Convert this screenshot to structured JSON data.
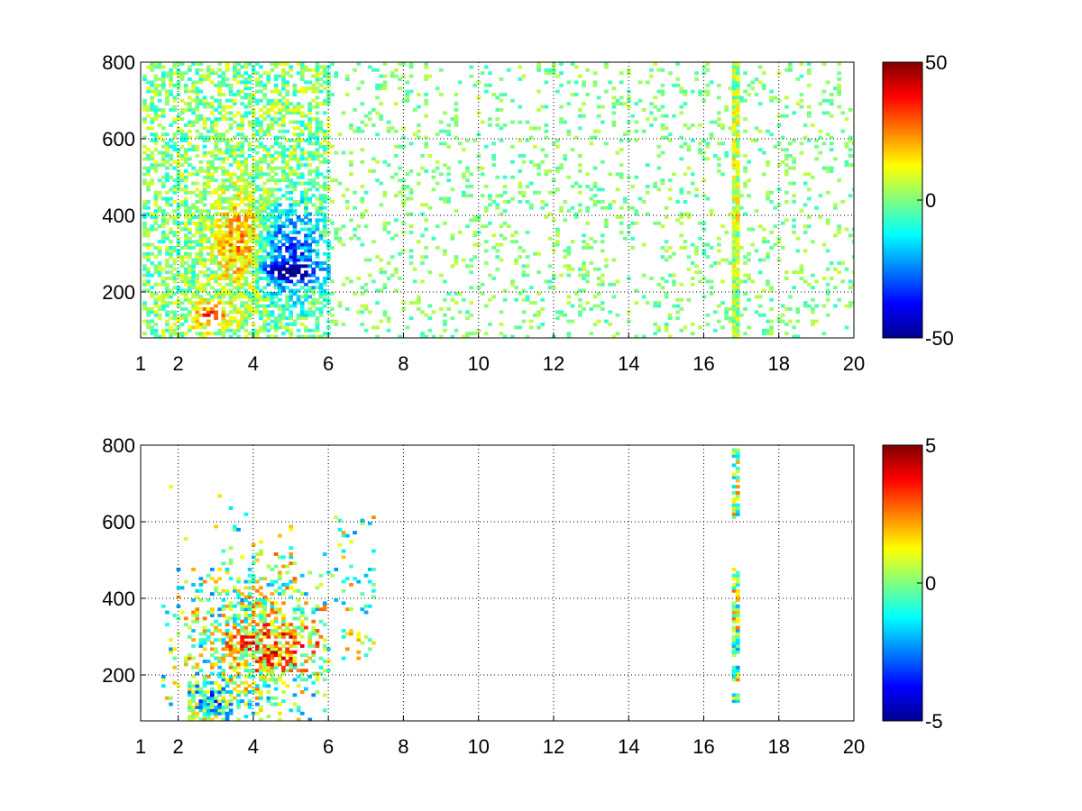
{
  "figure": {
    "background": "#ffffff",
    "colormap": "jet",
    "colormap_stops": [
      "#00008f",
      "#0000ff",
      "#00ffff",
      "#ffff00",
      "#ff0000",
      "#800000"
    ]
  },
  "chart_data": [
    {
      "type": "heatmap",
      "title": "",
      "xlabel": "",
      "ylabel": "",
      "xlim": [
        1,
        20
      ],
      "ylim": [
        80,
        800
      ],
      "x_ticks": [
        1,
        2,
        4,
        6,
        8,
        10,
        12,
        14,
        16,
        18,
        20
      ],
      "y_ticks": [
        200,
        400,
        600,
        800
      ],
      "grid": true,
      "clim": [
        -50,
        50
      ],
      "colorbar_ticks": [
        -50,
        0,
        50
      ],
      "colorbar_tick_labels": [
        "-50",
        "0",
        "50"
      ],
      "description_of_values": "sparse colored cells; dense region x 1.2-6 with positive values (orange/red) around x 2.5-4, y 100-400, negative (blue) around x 4-5.8, y 200-400; scattered near-zero cells beyond x 6; strong vertical streak at x 16.8",
      "features": [
        {
          "x_range": [
            2.3,
            3.3
          ],
          "y_range": [
            100,
            170
          ],
          "value": 30
        },
        {
          "x_range": [
            3.0,
            4.3
          ],
          "y_range": [
            200,
            450
          ],
          "value": 25
        },
        {
          "x_range": [
            4.0,
            5.8
          ],
          "y_range": [
            180,
            420
          ],
          "value": -30
        },
        {
          "x_range": [
            4.2,
            5.8
          ],
          "y_range": [
            230,
            270
          ],
          "value": -40
        },
        {
          "x_range": [
            16.7,
            16.9
          ],
          "y_range": [
            80,
            800
          ],
          "value": 8
        }
      ]
    },
    {
      "type": "heatmap",
      "title": "",
      "xlabel": "",
      "ylabel": "",
      "xlim": [
        1,
        20
      ],
      "ylim": [
        80,
        800
      ],
      "x_ticks": [
        1,
        2,
        4,
        6,
        8,
        10,
        12,
        14,
        16,
        18,
        20
      ],
      "y_ticks": [
        200,
        400,
        600,
        800
      ],
      "grid": true,
      "clim": [
        -5,
        5
      ],
      "colorbar_ticks": [
        -5,
        0,
        5
      ],
      "colorbar_tick_labels": [
        "-5",
        "0",
        "5"
      ],
      "description_of_values": "sparse cells concentrated at x 1.5-6, y 100-700 with mixed values; low region x 2.3-3.3, y 100-170 negative (cyan); region x 3-5.8, y 200-350 positive (orange/red); isolated cells near x 8.2, 14, 15.3 and a column at x 16.8",
      "features": [
        {
          "x_range": [
            2.3,
            3.3
          ],
          "y_range": [
            100,
            170
          ],
          "value": -1.5
        },
        {
          "x_range": [
            3.2,
            5.8
          ],
          "y_range": [
            200,
            340
          ],
          "value": 2.5
        },
        {
          "x_range": [
            4.0,
            5.8
          ],
          "y_range": [
            340,
            600
          ],
          "value": 0.5
        },
        {
          "x_range": [
            16.7,
            16.9
          ],
          "y_range": [
            120,
            800
          ],
          "value": 0.5
        }
      ]
    }
  ]
}
